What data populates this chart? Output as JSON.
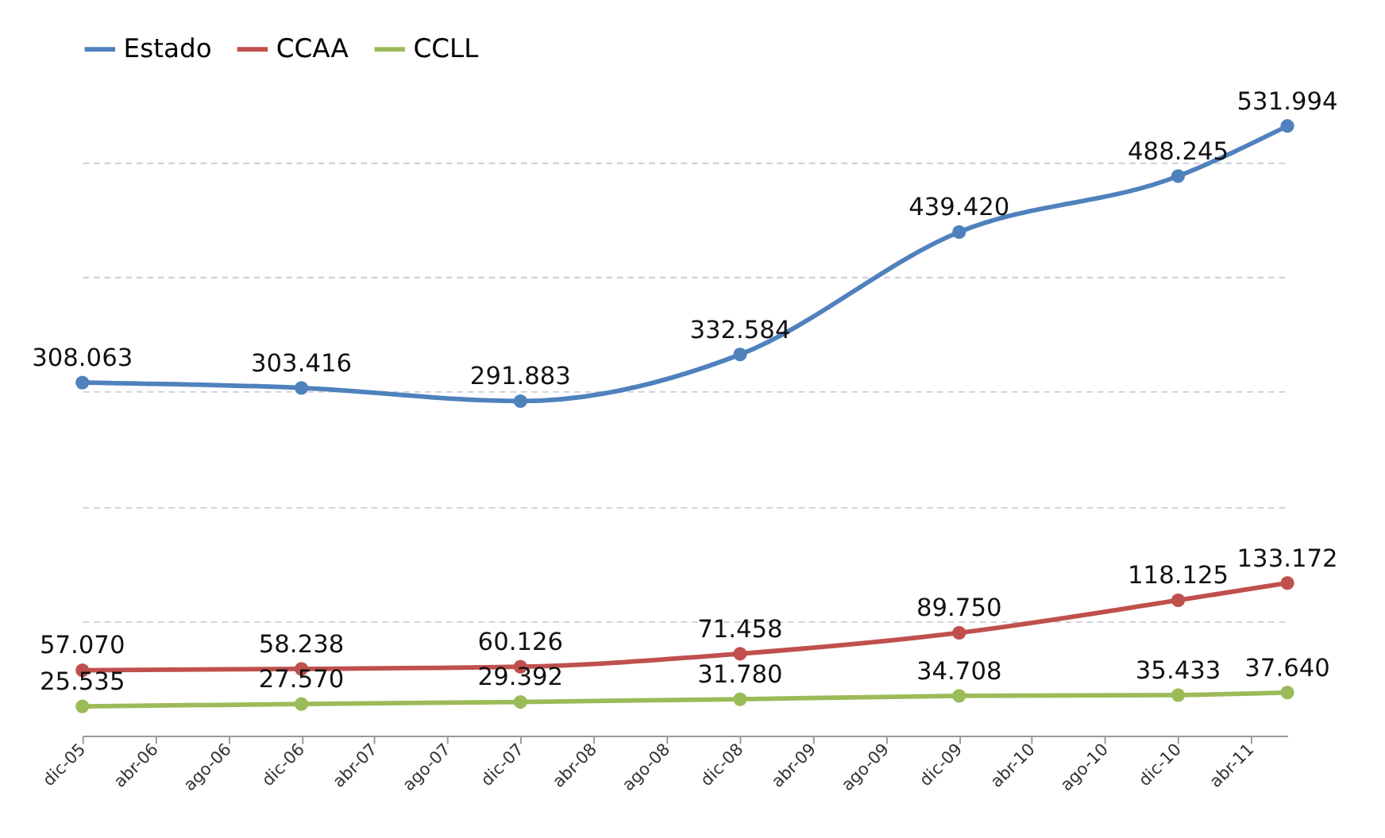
{
  "chart_data": {
    "type": "line",
    "x": [
      "2005-12-01",
      "2006-12-01",
      "2007-12-01",
      "2008-12-01",
      "2009-12-01",
      "2010-12-01",
      "2011-06-01"
    ],
    "series": [
      {
        "name": "Estado",
        "color": "#4f81bd",
        "values": [
          308063,
          303416,
          291883,
          332584,
          439420,
          488245,
          531994
        ],
        "value_labels": [
          "308.063",
          "303.416",
          "291.883",
          "332.584",
          "439.420",
          "488.245",
          "531.994"
        ]
      },
      {
        "name": "CCAA",
        "color": "#c0504d",
        "values": [
          57070,
          58238,
          60126,
          71458,
          89750,
          118125,
          133172
        ],
        "value_labels": [
          "57.070",
          "58.238",
          "60.126",
          "71.458",
          "89.750",
          "118.125",
          "133.172"
        ]
      },
      {
        "name": "CCLL",
        "color": "#9bbb59",
        "values": [
          25535,
          27570,
          29392,
          31780,
          34708,
          35433,
          37640
        ],
        "value_labels": [
          "25.535",
          "27.570",
          "29.392",
          "31.780",
          "34.708",
          "35.433",
          "37.640"
        ]
      }
    ],
    "xlim": [
      "2005-12-01",
      "2011-06-01"
    ],
    "xticks": [
      {
        "value": "2005-12-01",
        "label": "dic-05"
      },
      {
        "value": "2006-04-01",
        "label": "abr-06"
      },
      {
        "value": "2006-08-01",
        "label": "ago-06"
      },
      {
        "value": "2006-12-01",
        "label": "dic-06"
      },
      {
        "value": "2007-04-01",
        "label": "abr-07"
      },
      {
        "value": "2007-08-01",
        "label": "ago-07"
      },
      {
        "value": "2007-12-01",
        "label": "dic-07"
      },
      {
        "value": "2008-04-01",
        "label": "abr-08"
      },
      {
        "value": "2008-08-01",
        "label": "ago-08"
      },
      {
        "value": "2008-12-01",
        "label": "dic-08"
      },
      {
        "value": "2009-04-01",
        "label": "abr-09"
      },
      {
        "value": "2009-08-01",
        "label": "ago-09"
      },
      {
        "value": "2009-12-01",
        "label": "dic-09"
      },
      {
        "value": "2010-04-01",
        "label": "abr-10"
      },
      {
        "value": "2010-08-01",
        "label": "ago-10"
      },
      {
        "value": "2010-12-01",
        "label": "dic-10"
      },
      {
        "value": "2011-04-01",
        "label": "abr-11"
      }
    ],
    "yticks": [
      {
        "value": 0,
        "label": null
      },
      {
        "value": 100000,
        "label": null
      },
      {
        "value": 200000,
        "label": null
      },
      {
        "value": 300000,
        "label": null
      },
      {
        "value": 400000,
        "label": null
      },
      {
        "value": 500000,
        "label": null
      }
    ],
    "tick_labels": "x",
    "grid": "y",
    "legend": "top",
    "marker": "circle",
    "line_style": "solid"
  }
}
